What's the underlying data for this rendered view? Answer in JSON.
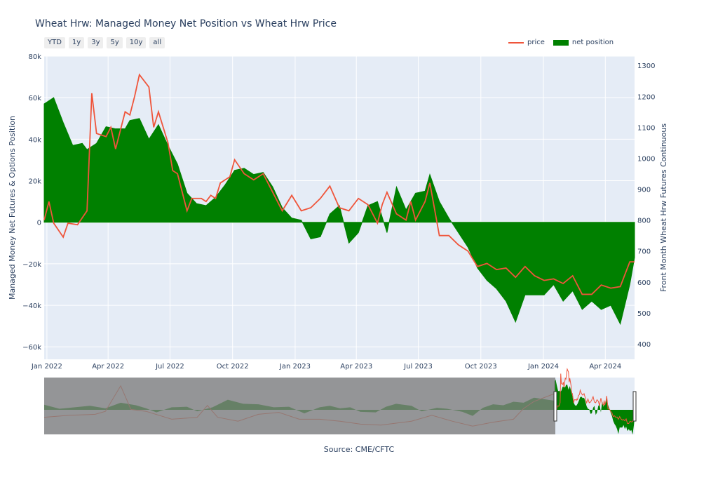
{
  "title": "Wheat Hrw: Managed Money Net Position vs Wheat Hrw Price",
  "range_buttons": [
    "YTD",
    "1y",
    "3y",
    "5y",
    "10y",
    "all"
  ],
  "legend": {
    "price_label": "price",
    "net_label": "net position"
  },
  "colors": {
    "price": "#ef553b",
    "net": "#008000",
    "plot_bg": "#e5ecf6",
    "grid": "#ffffff",
    "text": "#2a3f5f",
    "selector_mask": "#7f7f7f"
  },
  "source": "Source: CME/CFTC",
  "chart_data": {
    "type": "area",
    "y_axis_left": {
      "label": "Managed Money Net Futures & Options Position",
      "ticks": [
        80000,
        60000,
        40000,
        20000,
        0,
        -20000,
        -40000,
        -60000
      ],
      "tick_labels": [
        "80k",
        "60k",
        "40k",
        "20k",
        "0",
        "−20k",
        "−40k",
        "−60k"
      ],
      "range": [
        -66000,
        80000
      ]
    },
    "y_axis_right": {
      "label": "Front Month Wheat Hrw Futures Continuous",
      "ticks": [
        1300,
        1200,
        1100,
        1000,
        900,
        800,
        700,
        600,
        500,
        400
      ],
      "tick_labels": [
        "1300",
        "1200",
        "1100",
        "1000",
        "900",
        "800",
        "700",
        "600",
        "500",
        "400"
      ],
      "range": [
        350,
        1330
      ]
    },
    "x_axis": {
      "range": [
        "2021-12-28",
        "2024-05-14"
      ],
      "ticks": [
        "2022-01-01",
        "2022-04-01",
        "2022-07-01",
        "2022-10-01",
        "2023-01-01",
        "2023-04-01",
        "2023-07-01",
        "2023-10-01",
        "2024-01-01",
        "2024-04-01"
      ],
      "tick_labels": [
        "Jan 2022",
        "Apr 2022",
        "Jul 2022",
        "Oct 2022",
        "Jan 2023",
        "Apr 2023",
        "Jul 2023",
        "Oct 2023",
        "Jan 2024",
        "Apr 2024"
      ]
    },
    "series": [
      {
        "name": "net position",
        "axis": "left",
        "points": [
          [
            "2021-12-28",
            57000
          ],
          [
            "2022-01-11",
            60000
          ],
          [
            "2022-01-25",
            48000
          ],
          [
            "2022-02-08",
            37000
          ],
          [
            "2022-02-22",
            38000
          ],
          [
            "2022-03-01",
            35000
          ],
          [
            "2022-03-15",
            38000
          ],
          [
            "2022-03-29",
            46000
          ],
          [
            "2022-04-12",
            45000
          ],
          [
            "2022-04-26",
            45000
          ],
          [
            "2022-05-03",
            49000
          ],
          [
            "2022-05-17",
            50000
          ],
          [
            "2022-05-31",
            40000
          ],
          [
            "2022-06-14",
            47000
          ],
          [
            "2022-06-28",
            37000
          ],
          [
            "2022-07-12",
            28000
          ],
          [
            "2022-07-26",
            14000
          ],
          [
            "2022-08-09",
            9000
          ],
          [
            "2022-08-23",
            8000
          ],
          [
            "2022-09-06",
            12000
          ],
          [
            "2022-09-20",
            18000
          ],
          [
            "2022-10-04",
            25000
          ],
          [
            "2022-10-18",
            26000
          ],
          [
            "2022-11-01",
            23000
          ],
          [
            "2022-11-15",
            24000
          ],
          [
            "2022-11-29",
            17000
          ],
          [
            "2022-12-13",
            7000
          ],
          [
            "2022-12-27",
            2000
          ],
          [
            "2023-01-10",
            1000
          ],
          [
            "2023-01-24",
            -8000
          ],
          [
            "2023-02-07",
            -7000
          ],
          [
            "2023-02-21",
            4000
          ],
          [
            "2023-03-07",
            8000
          ],
          [
            "2023-03-21",
            -10000
          ],
          [
            "2023-04-04",
            -5000
          ],
          [
            "2023-04-18",
            8000
          ],
          [
            "2023-05-02",
            10000
          ],
          [
            "2023-05-16",
            -5000
          ],
          [
            "2023-05-30",
            17000
          ],
          [
            "2023-06-13",
            6000
          ],
          [
            "2023-06-27",
            14000
          ],
          [
            "2023-07-11",
            15000
          ],
          [
            "2023-07-18",
            23000
          ],
          [
            "2023-08-01",
            10000
          ],
          [
            "2023-08-15",
            2000
          ],
          [
            "2023-08-29",
            -5000
          ],
          [
            "2023-09-12",
            -12000
          ],
          [
            "2023-09-26",
            -22000
          ],
          [
            "2023-10-10",
            -28000
          ],
          [
            "2023-10-24",
            -32000
          ],
          [
            "2023-11-07",
            -38000
          ],
          [
            "2023-11-21",
            -48000
          ],
          [
            "2023-12-05",
            -35000
          ],
          [
            "2023-12-19",
            -35000
          ],
          [
            "2024-01-02",
            -35000
          ],
          [
            "2024-01-16",
            -30000
          ],
          [
            "2024-01-30",
            -38000
          ],
          [
            "2024-02-13",
            -33000
          ],
          [
            "2024-02-27",
            -42000
          ],
          [
            "2024-03-12",
            -38000
          ],
          [
            "2024-03-26",
            -42000
          ],
          [
            "2024-04-09",
            -40000
          ],
          [
            "2024-04-23",
            -49000
          ],
          [
            "2024-05-07",
            -30000
          ],
          [
            "2024-05-14",
            -17000
          ]
        ]
      },
      {
        "name": "price",
        "axis": "right",
        "points": [
          [
            "2021-12-28",
            800
          ],
          [
            "2022-01-04",
            860
          ],
          [
            "2022-01-11",
            790
          ],
          [
            "2022-01-25",
            745
          ],
          [
            "2022-02-01",
            790
          ],
          [
            "2022-02-15",
            785
          ],
          [
            "2022-03-01",
            830
          ],
          [
            "2022-03-08",
            1210
          ],
          [
            "2022-03-15",
            1080
          ],
          [
            "2022-03-29",
            1070
          ],
          [
            "2022-04-05",
            1100
          ],
          [
            "2022-04-12",
            1030
          ],
          [
            "2022-04-26",
            1150
          ],
          [
            "2022-05-03",
            1140
          ],
          [
            "2022-05-10",
            1200
          ],
          [
            "2022-05-17",
            1270
          ],
          [
            "2022-05-31",
            1230
          ],
          [
            "2022-06-07",
            1100
          ],
          [
            "2022-06-14",
            1150
          ],
          [
            "2022-06-28",
            1050
          ],
          [
            "2022-07-05",
            960
          ],
          [
            "2022-07-12",
            950
          ],
          [
            "2022-07-26",
            830
          ],
          [
            "2022-08-02",
            870
          ],
          [
            "2022-08-16",
            870
          ],
          [
            "2022-08-23",
            860
          ],
          [
            "2022-08-30",
            880
          ],
          [
            "2022-09-06",
            870
          ],
          [
            "2022-09-13",
            920
          ],
          [
            "2022-09-27",
            940
          ],
          [
            "2022-10-04",
            995
          ],
          [
            "2022-10-18",
            950
          ],
          [
            "2022-11-01",
            930
          ],
          [
            "2022-11-15",
            950
          ],
          [
            "2022-11-29",
            890
          ],
          [
            "2022-12-13",
            830
          ],
          [
            "2022-12-27",
            880
          ],
          [
            "2023-01-10",
            830
          ],
          [
            "2023-01-24",
            840
          ],
          [
            "2023-02-07",
            870
          ],
          [
            "2023-02-21",
            910
          ],
          [
            "2023-03-07",
            840
          ],
          [
            "2023-03-21",
            830
          ],
          [
            "2023-04-04",
            870
          ],
          [
            "2023-04-18",
            850
          ],
          [
            "2023-05-02",
            790
          ],
          [
            "2023-05-09",
            850
          ],
          [
            "2023-05-16",
            890
          ],
          [
            "2023-05-30",
            820
          ],
          [
            "2023-06-13",
            800
          ],
          [
            "2023-06-20",
            860
          ],
          [
            "2023-06-27",
            800
          ],
          [
            "2023-07-11",
            860
          ],
          [
            "2023-07-18",
            920
          ],
          [
            "2023-08-01",
            750
          ],
          [
            "2023-08-15",
            750
          ],
          [
            "2023-08-29",
            720
          ],
          [
            "2023-09-12",
            700
          ],
          [
            "2023-09-26",
            650
          ],
          [
            "2023-10-10",
            660
          ],
          [
            "2023-10-24",
            640
          ],
          [
            "2023-11-07",
            645
          ],
          [
            "2023-11-21",
            615
          ],
          [
            "2023-12-05",
            650
          ],
          [
            "2023-12-19",
            620
          ],
          [
            "2024-01-02",
            605
          ],
          [
            "2024-01-16",
            610
          ],
          [
            "2024-01-30",
            595
          ],
          [
            "2024-02-13",
            620
          ],
          [
            "2024-02-27",
            560
          ],
          [
            "2024-03-12",
            560
          ],
          [
            "2024-03-26",
            590
          ],
          [
            "2024-04-09",
            580
          ],
          [
            "2024-04-23",
            585
          ],
          [
            "2024-05-07",
            665
          ],
          [
            "2024-05-14",
            665
          ]
        ]
      }
    ],
    "range_slider": {
      "shown": true,
      "history_points": {
        "net": [
          [
            0,
            10000
          ],
          [
            0.03,
            2000
          ],
          [
            0.06,
            5000
          ],
          [
            0.09,
            8000
          ],
          [
            0.12,
            3000
          ],
          [
            0.15,
            14000
          ],
          [
            0.18,
            9000
          ],
          [
            0.2,
            3000
          ],
          [
            0.22,
            -5000
          ],
          [
            0.25,
            5000
          ],
          [
            0.28,
            6000
          ],
          [
            0.3,
            -3000
          ],
          [
            0.33,
            5000
          ],
          [
            0.36,
            20000
          ],
          [
            0.39,
            12000
          ],
          [
            0.42,
            11000
          ],
          [
            0.45,
            5000
          ],
          [
            0.48,
            6000
          ],
          [
            0.51,
            -7000
          ],
          [
            0.54,
            5000
          ],
          [
            0.56,
            8000
          ],
          [
            0.58,
            3000
          ],
          [
            0.6,
            5000
          ],
          [
            0.62,
            -4000
          ],
          [
            0.65,
            -5000
          ],
          [
            0.67,
            6000
          ],
          [
            0.69,
            12000
          ],
          [
            0.72,
            8000
          ],
          [
            0.74,
            -3000
          ],
          [
            0.77,
            4000
          ],
          [
            0.79,
            2000
          ],
          [
            0.82,
            -4000
          ],
          [
            0.84,
            -12000
          ],
          [
            0.86,
            4000
          ],
          [
            0.88,
            11000
          ],
          [
            0.9,
            9000
          ],
          [
            0.92,
            16000
          ],
          [
            0.94,
            14000
          ],
          [
            0.96,
            24000
          ],
          [
            0.98,
            21000
          ],
          [
            1,
            18000
          ]
        ],
        "price": [
          [
            0,
            560
          ],
          [
            0.05,
            580
          ],
          [
            0.1,
            590
          ],
          [
            0.12,
            620
          ],
          [
            0.15,
            880
          ],
          [
            0.17,
            640
          ],
          [
            0.2,
            620
          ],
          [
            0.25,
            540
          ],
          [
            0.3,
            560
          ],
          [
            0.32,
            680
          ],
          [
            0.34,
            560
          ],
          [
            0.38,
            520
          ],
          [
            0.42,
            590
          ],
          [
            0.46,
            610
          ],
          [
            0.5,
            540
          ],
          [
            0.54,
            540
          ],
          [
            0.58,
            520
          ],
          [
            0.62,
            490
          ],
          [
            0.66,
            480
          ],
          [
            0.72,
            520
          ],
          [
            0.76,
            580
          ],
          [
            0.8,
            520
          ],
          [
            0.84,
            470
          ],
          [
            0.88,
            510
          ],
          [
            0.92,
            540
          ],
          [
            0.94,
            650
          ],
          [
            0.96,
            720
          ],
          [
            0.98,
            760
          ],
          [
            1,
            800
          ]
        ]
      }
    }
  }
}
